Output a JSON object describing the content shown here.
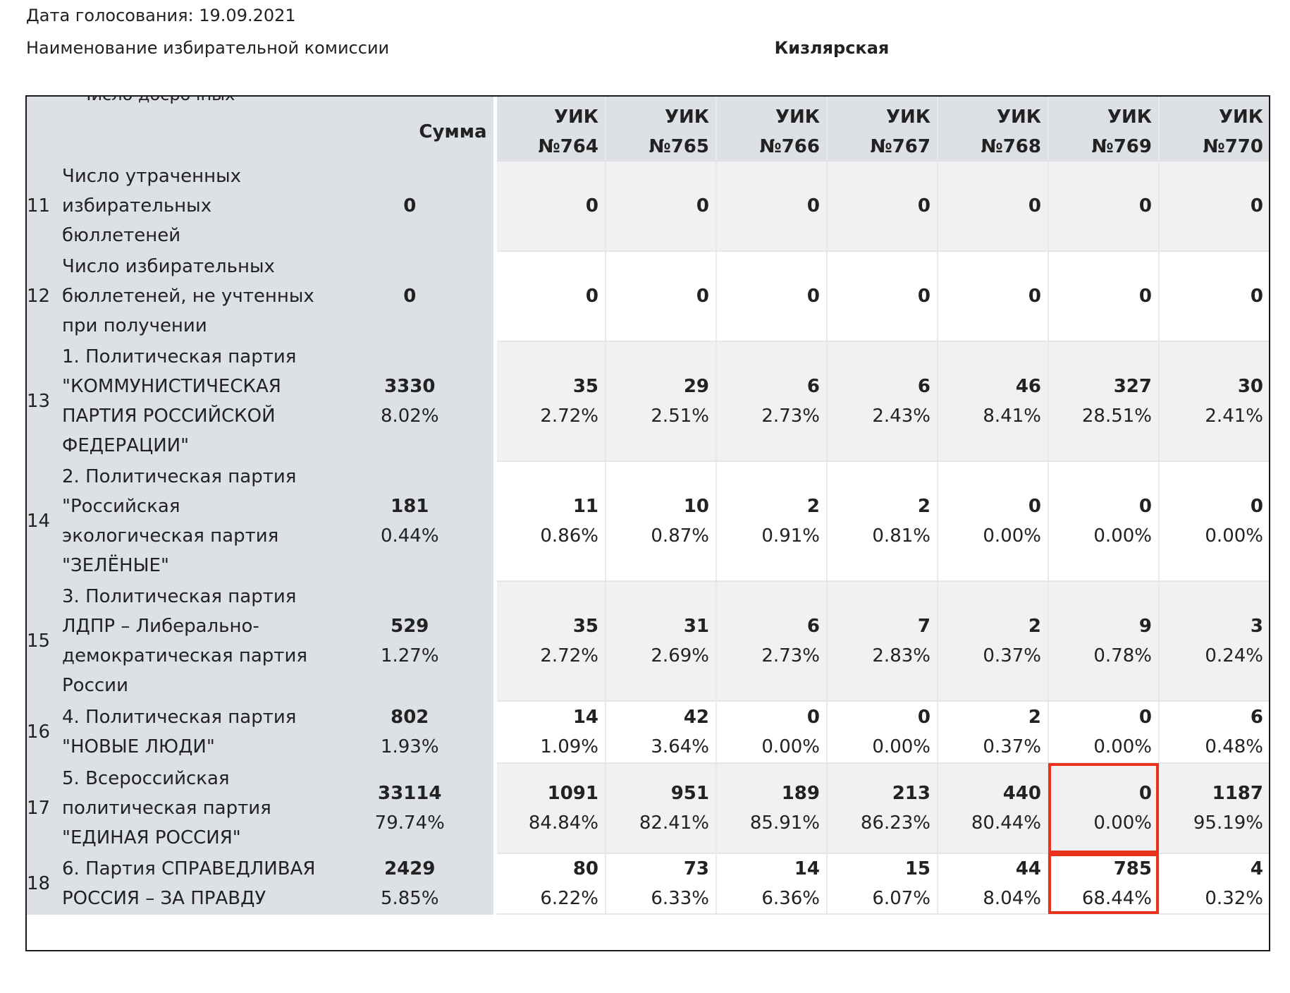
{
  "header": {
    "date_line": "Дата голосования:  19.09.2021",
    "commission_label": "Наименование избирательной комиссии",
    "commission_name": "Кизлярская"
  },
  "table": {
    "cut_row_label": "Число досрочных",
    "columns": {
      "sum": "Сумма",
      "uik": [
        "УИК №764",
        "УИК №765",
        "УИК №766",
        "УИК №767",
        "УИК №768",
        "УИК №769",
        "УИК №770"
      ]
    },
    "rows": [
      {
        "idx": "11",
        "name": "Число утраченных избирательных бюллетеней",
        "sum": {
          "value": "0",
          "pct": ""
        },
        "cells": [
          {
            "value": "0",
            "pct": ""
          },
          {
            "value": "0",
            "pct": ""
          },
          {
            "value": "0",
            "pct": ""
          },
          {
            "value": "0",
            "pct": ""
          },
          {
            "value": "0",
            "pct": ""
          },
          {
            "value": "0",
            "pct": ""
          },
          {
            "value": "0",
            "pct": ""
          }
        ]
      },
      {
        "idx": "12",
        "name": "Число избирательных бюллетеней, не учтенных при получении",
        "sum": {
          "value": "0",
          "pct": ""
        },
        "cells": [
          {
            "value": "0",
            "pct": ""
          },
          {
            "value": "0",
            "pct": ""
          },
          {
            "value": "0",
            "pct": ""
          },
          {
            "value": "0",
            "pct": ""
          },
          {
            "value": "0",
            "pct": ""
          },
          {
            "value": "0",
            "pct": ""
          },
          {
            "value": "0",
            "pct": ""
          }
        ]
      },
      {
        "idx": "13",
        "name": "1. Политическая партия \"КОММУНИСТИЧЕСКАЯ ПАРТИЯ РОССИЙСКОЙ ФЕДЕРАЦИИ\"",
        "sum": {
          "value": "3330",
          "pct": "8.02%"
        },
        "cells": [
          {
            "value": "35",
            "pct": "2.72%"
          },
          {
            "value": "29",
            "pct": "2.51%"
          },
          {
            "value": "6",
            "pct": "2.73%"
          },
          {
            "value": "6",
            "pct": "2.43%"
          },
          {
            "value": "46",
            "pct": "8.41%"
          },
          {
            "value": "327",
            "pct": "28.51%"
          },
          {
            "value": "30",
            "pct": "2.41%"
          }
        ]
      },
      {
        "idx": "14",
        "name": "2. Политическая партия \"Российская экологическая партия \"ЗЕЛЁНЫЕ\"",
        "sum": {
          "value": "181",
          "pct": "0.44%"
        },
        "cells": [
          {
            "value": "11",
            "pct": "0.86%"
          },
          {
            "value": "10",
            "pct": "0.87%"
          },
          {
            "value": "2",
            "pct": "0.91%"
          },
          {
            "value": "2",
            "pct": "0.81%"
          },
          {
            "value": "0",
            "pct": "0.00%"
          },
          {
            "value": "0",
            "pct": "0.00%"
          },
          {
            "value": "0",
            "pct": "0.00%"
          }
        ]
      },
      {
        "idx": "15",
        "name": "3. Политическая партия ЛДПР – Либерально-демократическая партия России",
        "sum": {
          "value": "529",
          "pct": "1.27%"
        },
        "cells": [
          {
            "value": "35",
            "pct": "2.72%"
          },
          {
            "value": "31",
            "pct": "2.69%"
          },
          {
            "value": "6",
            "pct": "2.73%"
          },
          {
            "value": "7",
            "pct": "2.83%"
          },
          {
            "value": "2",
            "pct": "0.37%"
          },
          {
            "value": "9",
            "pct": "0.78%"
          },
          {
            "value": "3",
            "pct": "0.24%"
          }
        ]
      },
      {
        "idx": "16",
        "name": "4. Политическая партия \"НОВЫЕ ЛЮДИ\"",
        "sum": {
          "value": "802",
          "pct": "1.93%"
        },
        "cells": [
          {
            "value": "14",
            "pct": "1.09%"
          },
          {
            "value": "42",
            "pct": "3.64%"
          },
          {
            "value": "0",
            "pct": "0.00%"
          },
          {
            "value": "0",
            "pct": "0.00%"
          },
          {
            "value": "2",
            "pct": "0.37%"
          },
          {
            "value": "0",
            "pct": "0.00%"
          },
          {
            "value": "6",
            "pct": "0.48%"
          }
        ]
      },
      {
        "idx": "17",
        "name": "5. Всероссийская политическая партия \"ЕДИНАЯ РОССИЯ\"",
        "sum": {
          "value": "33114",
          "pct": "79.74%"
        },
        "cells": [
          {
            "value": "1091",
            "pct": "84.84%"
          },
          {
            "value": "951",
            "pct": "82.41%"
          },
          {
            "value": "189",
            "pct": "85.91%"
          },
          {
            "value": "213",
            "pct": "86.23%"
          },
          {
            "value": "440",
            "pct": "80.44%"
          },
          {
            "value": "0",
            "pct": "0.00%"
          },
          {
            "value": "1187",
            "pct": "95.19%"
          }
        ]
      },
      {
        "idx": "18",
        "name": "6. Партия СПРАВЕДЛИВАЯ РОССИЯ – ЗА ПРАВДУ",
        "sum": {
          "value": "2429",
          "pct": "5.85%"
        },
        "cells": [
          {
            "value": "80",
            "pct": "6.22%"
          },
          {
            "value": "73",
            "pct": "6.33%"
          },
          {
            "value": "14",
            "pct": "6.36%"
          },
          {
            "value": "15",
            "pct": "6.07%"
          },
          {
            "value": "44",
            "pct": "8.04%"
          },
          {
            "value": "785",
            "pct": "68.44%"
          },
          {
            "value": "4",
            "pct": "0.32%"
          }
        ]
      }
    ],
    "highlighted_column": "УИК №769",
    "highlight_color": "#e8321e"
  }
}
